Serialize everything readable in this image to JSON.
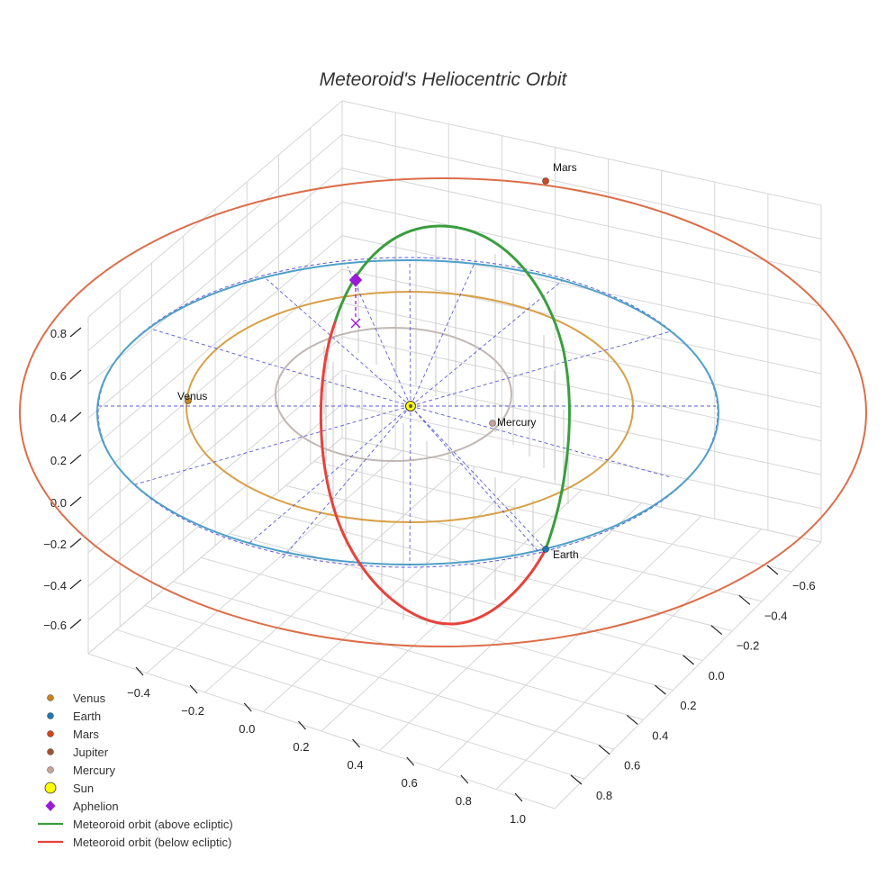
{
  "chart_data": {
    "type": "scatter",
    "projection": "3d",
    "title": "Meteoroid's Heliocentric Orbit",
    "axes": {
      "x": {
        "ticks": [
          "−0.4",
          "−0.2",
          "0.0",
          "0.2",
          "0.4",
          "0.6",
          "0.8",
          "1.0"
        ]
      },
      "y": {
        "ticks": [
          "−0.6",
          "−0.4",
          "−0.2",
          "0.0",
          "0.2",
          "0.4",
          "0.6",
          "0.8"
        ]
      },
      "z": {
        "ticks": [
          "0.8",
          "0.6",
          "0.4",
          "0.2",
          "0.0",
          "−0.2",
          "−0.4",
          "−0.6"
        ]
      },
      "grid": true
    },
    "orbits": [
      {
        "name": "Mercury orbit",
        "color": "#c0b8b4"
      },
      {
        "name": "Venus orbit",
        "color": "#d8a047"
      },
      {
        "name": "Earth orbit",
        "color": "#4fa0c8"
      },
      {
        "name": "Mars orbit",
        "color": "#dc6e4a"
      }
    ],
    "series": [
      {
        "name": "Meteoroid orbit (above ecliptic)",
        "color": "#3a9e3e",
        "marker": "line"
      },
      {
        "name": "Meteoroid orbit (below ecliptic)",
        "color": "#e8413c",
        "marker": "line"
      }
    ],
    "points": [
      {
        "name": "Venus",
        "label": "Venus",
        "color": "#c8821e",
        "marker": "circle"
      },
      {
        "name": "Earth",
        "label": "Earth",
        "color": "#1f77b4",
        "marker": "circle"
      },
      {
        "name": "Mars",
        "label": "Mars",
        "color": "#d2461e",
        "marker": "circle"
      },
      {
        "name": "Mercury",
        "label": "Mercury",
        "color": "#c4a49c",
        "marker": "circle"
      },
      {
        "name": "Sun",
        "color": "#ffff00",
        "marker": "circle"
      },
      {
        "name": "Aphelion",
        "color": "#9b1bd8",
        "marker": "diamond"
      }
    ],
    "legend": {
      "position": "bottom-left",
      "entries": [
        {
          "label": "Venus",
          "color": "#c8821e",
          "marker": "dot"
        },
        {
          "label": "Earth",
          "color": "#1f77b4",
          "marker": "dot"
        },
        {
          "label": "Mars",
          "color": "#d2461e",
          "marker": "dot"
        },
        {
          "label": "Jupiter",
          "color": "#a0522d",
          "marker": "dot"
        },
        {
          "label": "Mercury",
          "color": "#c4a49c",
          "marker": "dot"
        },
        {
          "label": "Sun",
          "color": "#ffff00",
          "marker": "sun"
        },
        {
          "label": "Aphelion",
          "color": "#9b1bd8",
          "marker": "diamond"
        },
        {
          "label": "Meteoroid orbit (above ecliptic)",
          "color": "#3a9e3e",
          "marker": "line"
        },
        {
          "label": "Meteoroid orbit (below ecliptic)",
          "color": "#e8413c",
          "marker": "line"
        }
      ]
    }
  }
}
